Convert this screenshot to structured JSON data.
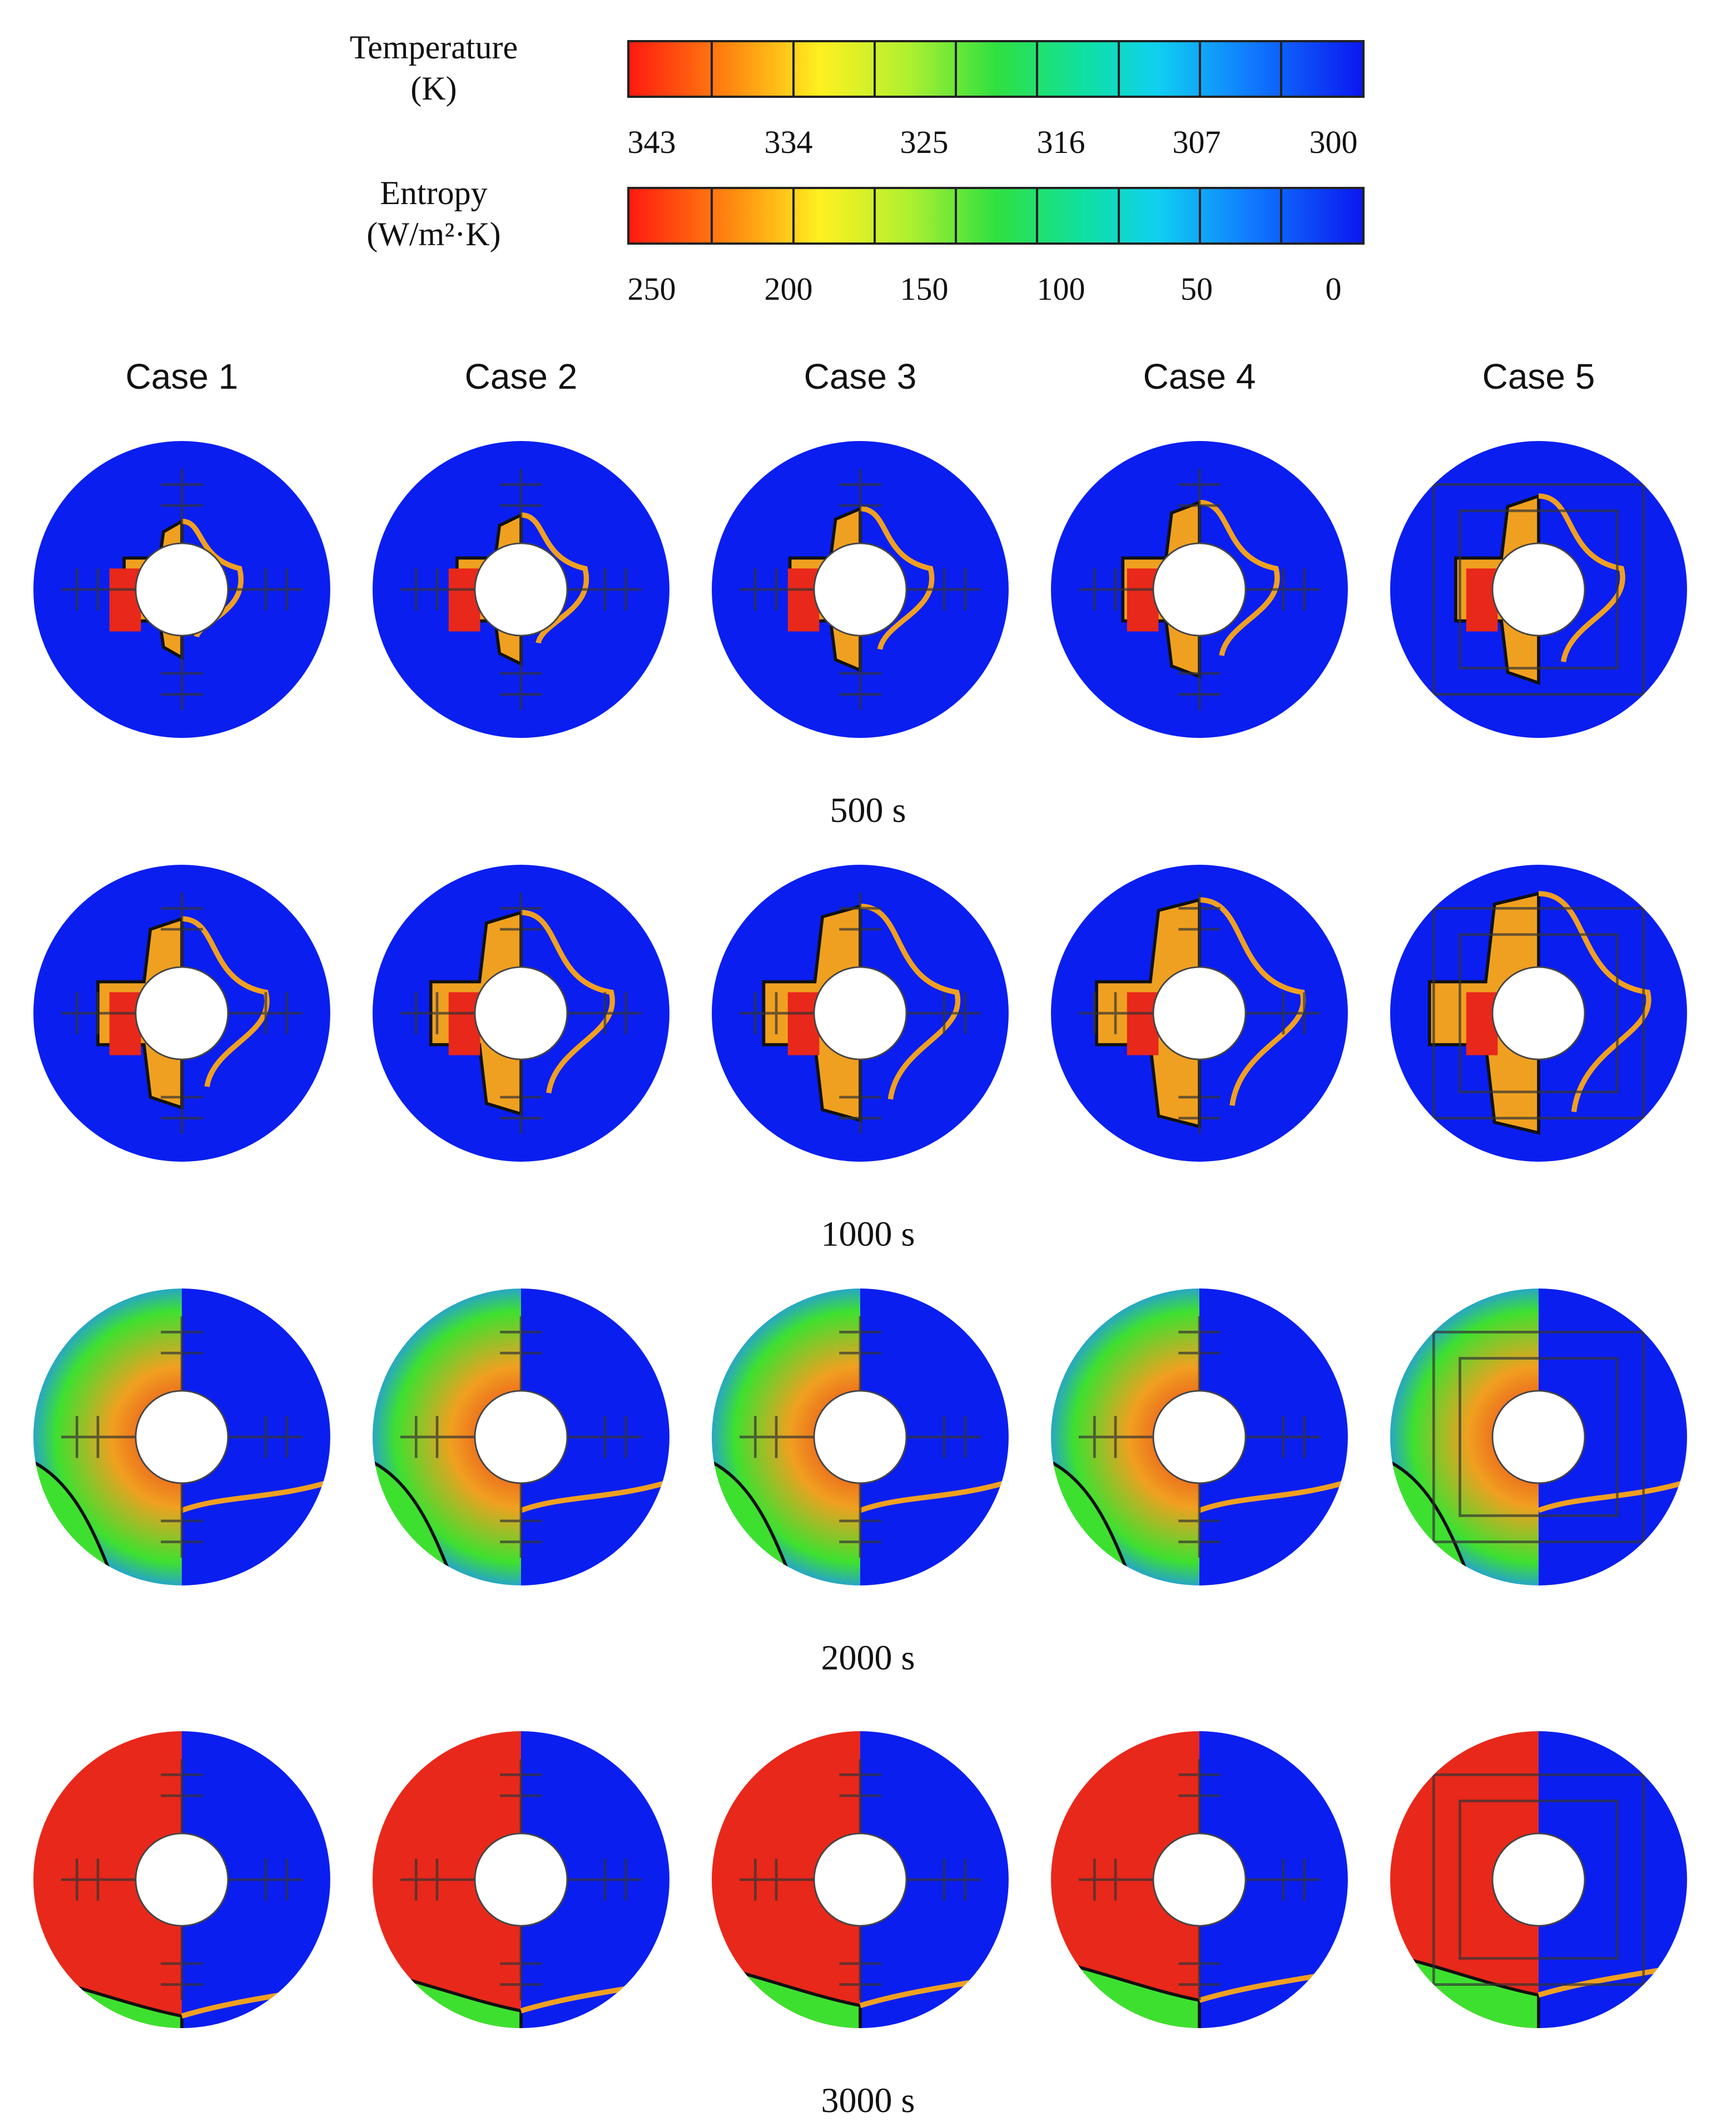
{
  "legend": {
    "temperature": {
      "title_line1": "Temperature",
      "title_line2": "(K)",
      "ticks": [
        "343",
        "334",
        "325",
        "316",
        "307",
        "300"
      ]
    },
    "entropy": {
      "title_line1": "Entropy",
      "title_line2": "(W/m²·K)",
      "ticks": [
        "250",
        "200",
        "150",
        "100",
        "50",
        "0"
      ]
    }
  },
  "cases": [
    "Case 1",
    "Case 2",
    "Case 3",
    "Case 4",
    "Case 5"
  ],
  "times": [
    "500 s",
    "1000 s",
    "2000 s",
    "3000 s"
  ],
  "colors": {
    "hot": "#e8281a",
    "warm": "#f0a020",
    "mid": "#3ee030",
    "cool": "#1e90ff",
    "cold": "#0a1ef0"
  }
}
